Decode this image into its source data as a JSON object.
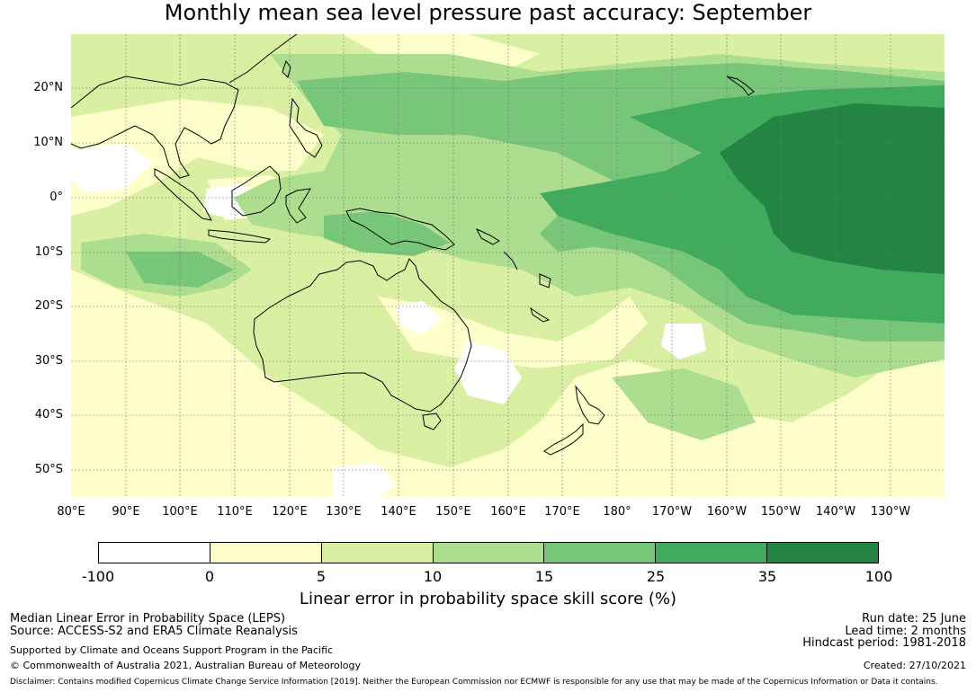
{
  "title": "Monthly mean sea level pressure past accuracy: September",
  "latitude_labels": [
    "20°N",
    "10°N",
    "0°",
    "10°S",
    "20°S",
    "30°S",
    "40°S",
    "50°S"
  ],
  "longitude_labels": [
    "80°E",
    "90°E",
    "100°E",
    "110°E",
    "120°E",
    "130°E",
    "140°E",
    "150°E",
    "160°E",
    "170°E",
    "180°",
    "170°W",
    "160°W",
    "150°W",
    "140°W",
    "130°W"
  ],
  "colorbar": {
    "title": "Linear error in probability space skill score (%)",
    "ticks": [
      "-100",
      "0",
      "5",
      "10",
      "15",
      "25",
      "35",
      "100"
    ],
    "colors": [
      "#ffffff",
      "#ffffcc",
      "#d9f0a3",
      "#addd8e",
      "#78c679",
      "#41ab5d",
      "#238443"
    ]
  },
  "footer": {
    "left_line1": "Median Linear Error in Probability Space (LEPS)",
    "left_line2": "Source: ACCESS-S2 and ERA5 Climate Reanalysis",
    "left_line3": "Supported by Climate and Oceans Support Program in the Pacific",
    "left_line4": "© Commonwealth of Australia 2021, Australian Bureau of Meteorology",
    "right_line1": "Run date: 25 June",
    "right_line2": "Lead time: 2 months",
    "right_line3": "Hindcast period: 1981-2018",
    "right_line4": "Created: 27/10/2021",
    "disclaimer": "Disclaimer: Contains modified Copernicus Climate Change Service Information [2019]. Neither the European Commission nor ECMWF is responsible for any use that may be made of the Copernicus Information or Data it contains."
  }
}
